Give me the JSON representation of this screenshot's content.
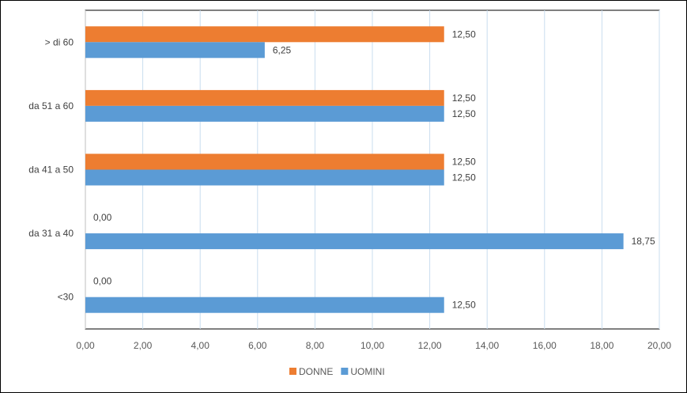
{
  "chart_data": {
    "type": "bar",
    "orientation": "horizontal",
    "categories": [
      "> di 60",
      "da 51 a 60",
      "da 41 a 50",
      "da 31 a 40",
      "<30"
    ],
    "series": [
      {
        "name": "DONNE",
        "color": "#ED7D31",
        "values": [
          12.5,
          12.5,
          12.5,
          0.0,
          0.0
        ],
        "labels": [
          "12,50",
          "12,50",
          "12,50",
          "0,00",
          "0,00"
        ]
      },
      {
        "name": "UOMINI",
        "color": "#5B9BD5",
        "values": [
          6.25,
          12.5,
          12.5,
          18.75,
          12.5
        ],
        "labels": [
          "6,25",
          "12,50",
          "12,50",
          "18,75",
          "12,50"
        ]
      }
    ],
    "xlim": [
      0,
      20
    ],
    "x_ticks": [
      0,
      2,
      4,
      6,
      8,
      10,
      12,
      14,
      16,
      18,
      20
    ],
    "x_tick_labels": [
      "0,00",
      "2,00",
      "4,00",
      "6,00",
      "8,00",
      "10,00",
      "12,00",
      "14,00",
      "16,00",
      "18,00",
      "20,00"
    ],
    "grid": true,
    "legend": "bottom",
    "title": "",
    "xlabel": "",
    "ylabel": ""
  }
}
